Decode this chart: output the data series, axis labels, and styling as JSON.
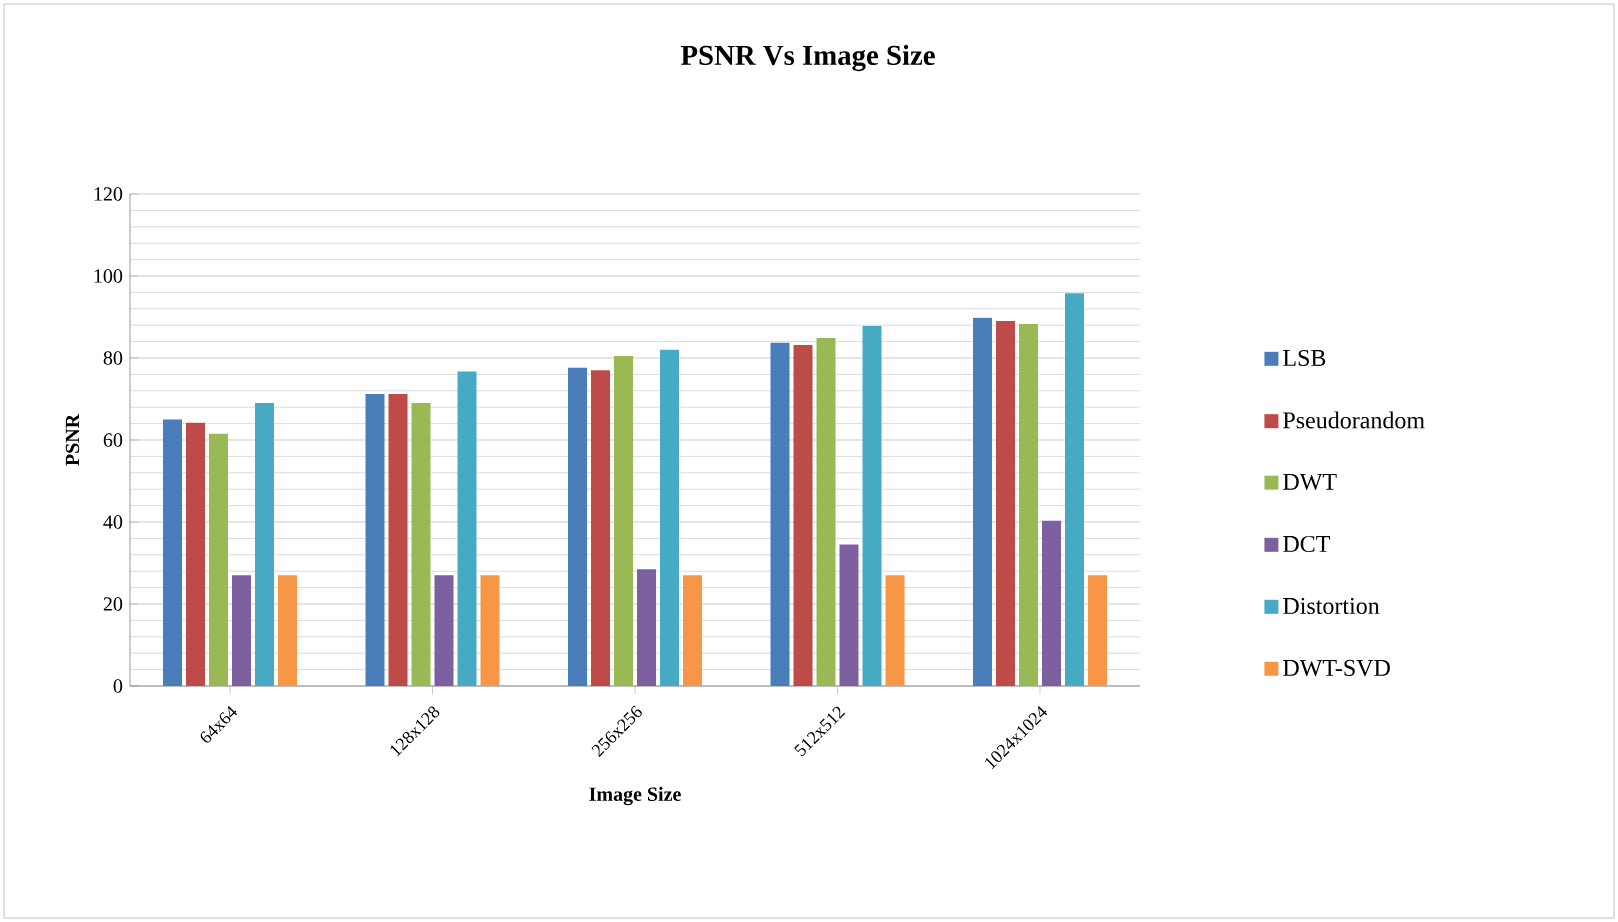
{
  "chart_data": {
    "type": "bar",
    "title": "PSNR Vs Image Size",
    "xlabel": "Image Size",
    "ylabel": "PSNR",
    "categories": [
      "64x64",
      "128x128",
      "256x256",
      "512x512",
      "1024x1024"
    ],
    "series": [
      {
        "name": "LSB",
        "color": "#4a7ebb",
        "values": [
          65,
          71.2,
          77.6,
          83.7,
          89.8
        ]
      },
      {
        "name": "Pseudorandom",
        "color": "#be4b48",
        "values": [
          64.2,
          71.2,
          77,
          83.2,
          89
        ]
      },
      {
        "name": "DWT",
        "color": "#98b954",
        "values": [
          61.5,
          69,
          80.5,
          84.9,
          88.3
        ]
      },
      {
        "name": "DCT",
        "color": "#7d60a0",
        "values": [
          27,
          27,
          28.5,
          34.5,
          40.3
        ]
      },
      {
        "name": "Distortion",
        "color": "#46aac5",
        "values": [
          69,
          76.7,
          82,
          87.8,
          95.8
        ]
      },
      {
        "name": "DWT-SVD",
        "color": "#f79646",
        "values": [
          27,
          27,
          27,
          27,
          27
        ]
      }
    ],
    "ylim": [
      0,
      120
    ],
    "yticks": [
      0,
      20,
      40,
      60,
      80,
      100,
      120
    ],
    "grid": "y",
    "legend": "right"
  }
}
